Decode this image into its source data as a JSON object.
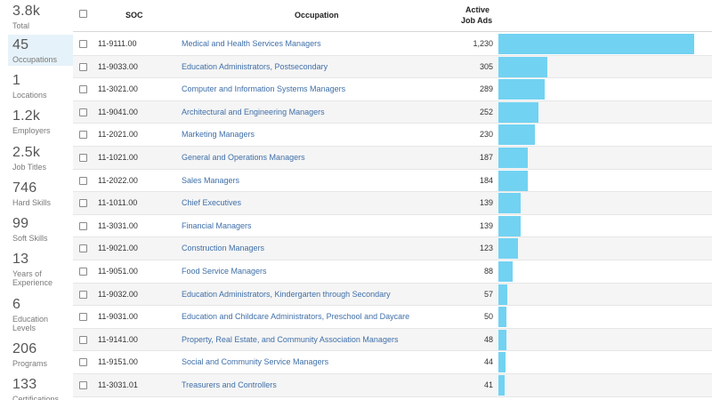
{
  "sidebar": {
    "stats": [
      {
        "value": "3.8k",
        "label": "Total"
      },
      {
        "value": "45",
        "label": "Occupations"
      },
      {
        "value": "1",
        "label": "Locations"
      },
      {
        "value": "1.2k",
        "label": "Employers"
      },
      {
        "value": "2.5k",
        "label": "Job Titles"
      },
      {
        "value": "746",
        "label": "Hard Skills"
      },
      {
        "value": "99",
        "label": "Soft Skills"
      },
      {
        "value": "13",
        "label": "Years of Experience"
      },
      {
        "value": "6",
        "label": "Education Levels"
      },
      {
        "value": "206",
        "label": "Programs"
      },
      {
        "value": "133",
        "label": "Certifications"
      }
    ],
    "active_index": 1
  },
  "table": {
    "headers": {
      "soc": "SOC",
      "occupation": "Occupation",
      "ads_line1": "Active",
      "ads_line2": "Job Ads"
    },
    "max_value": 1230,
    "rows": [
      {
        "soc": "11-9111.00",
        "occupation": "Medical and Health Services Managers",
        "ads": "1,230",
        "value": 1230
      },
      {
        "soc": "11-9033.00",
        "occupation": "Education Administrators, Postsecondary",
        "ads": "305",
        "value": 305
      },
      {
        "soc": "11-3021.00",
        "occupation": "Computer and Information Systems Managers",
        "ads": "289",
        "value": 289
      },
      {
        "soc": "11-9041.00",
        "occupation": "Architectural and Engineering Managers",
        "ads": "252",
        "value": 252
      },
      {
        "soc": "11-2021.00",
        "occupation": "Marketing Managers",
        "ads": "230",
        "value": 230
      },
      {
        "soc": "11-1021.00",
        "occupation": "General and Operations Managers",
        "ads": "187",
        "value": 187
      },
      {
        "soc": "11-2022.00",
        "occupation": "Sales Managers",
        "ads": "184",
        "value": 184
      },
      {
        "soc": "11-1011.00",
        "occupation": "Chief Executives",
        "ads": "139",
        "value": 139
      },
      {
        "soc": "11-3031.00",
        "occupation": "Financial Managers",
        "ads": "139",
        "value": 139
      },
      {
        "soc": "11-9021.00",
        "occupation": "Construction Managers",
        "ads": "123",
        "value": 123
      },
      {
        "soc": "11-9051.00",
        "occupation": "Food Service Managers",
        "ads": "88",
        "value": 88
      },
      {
        "soc": "11-9032.00",
        "occupation": "Education Administrators, Kindergarten through Secondary",
        "ads": "57",
        "value": 57
      },
      {
        "soc": "11-9031.00",
        "occupation": "Education and Childcare Administrators, Preschool and Daycare",
        "ads": "50",
        "value": 50
      },
      {
        "soc": "11-9141.00",
        "occupation": "Property, Real Estate, and Community Association Managers",
        "ads": "48",
        "value": 48
      },
      {
        "soc": "11-9151.00",
        "occupation": "Social and Community Service Managers",
        "ads": "44",
        "value": 44
      },
      {
        "soc": "11-3031.01",
        "occupation": "Treasurers and Controllers",
        "ads": "41",
        "value": 41
      }
    ]
  },
  "colors": {
    "bar": "#72d2f2",
    "link": "#3f6fa8",
    "active_stat_bg": "#e6f2f9"
  }
}
